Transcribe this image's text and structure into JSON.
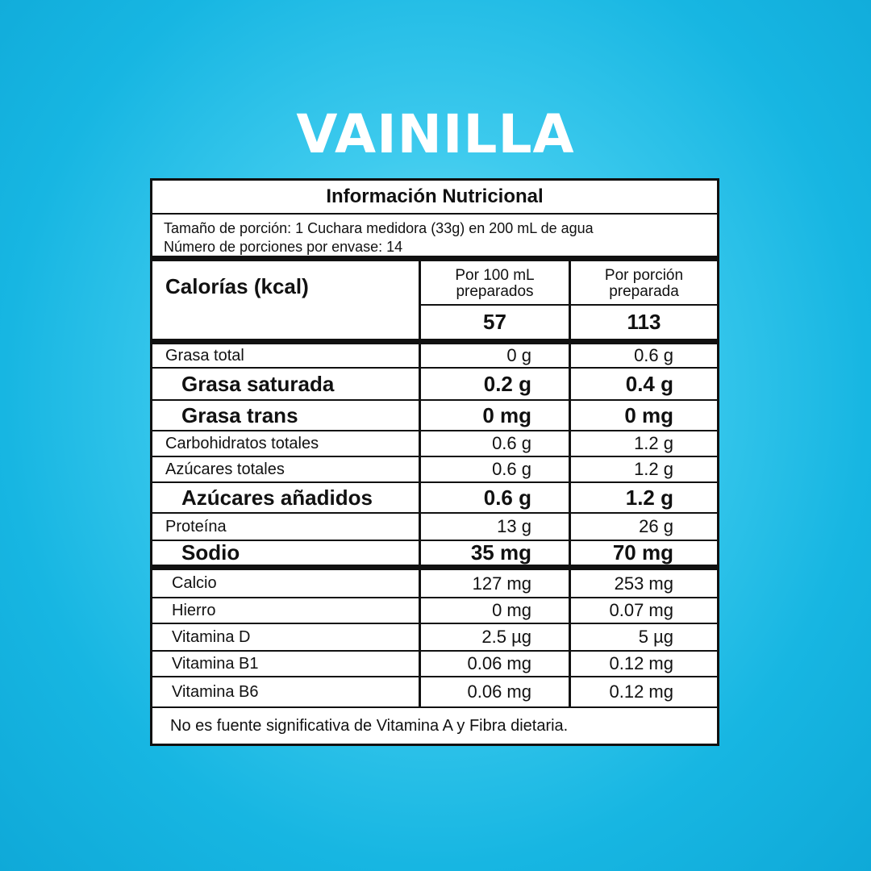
{
  "title": "VAINILLA",
  "label": {
    "heading": "Información Nutricional",
    "serving_size": "Tamaño de porción: 1 Cuchara medidora (33g) en 200 mL de agua",
    "servings_per_container": "Número de porciones por envase: 14",
    "calories_label": "Calorías (kcal)",
    "col1_header": "Por 100 mL preparados",
    "col2_header": "Por porción preparada",
    "calories_col1": "57",
    "calories_col2": "113",
    "nutrients": [
      {
        "name": "Grasa total",
        "v1": "0 g",
        "v2": "0.6 g",
        "bold": false
      },
      {
        "name": "Grasa saturada",
        "v1": "0.2 g",
        "v2": "0.4 g",
        "bold": true
      },
      {
        "name": "Grasa trans",
        "v1": "0 mg",
        "v2": "0 mg",
        "bold": true
      },
      {
        "name": "Carbohidratos totales",
        "v1": "0.6 g",
        "v2": "1.2 g",
        "bold": false
      },
      {
        "name": "Azúcares totales",
        "v1": "0.6 g",
        "v2": "1.2 g",
        "bold": false
      },
      {
        "name": "Azúcares añadidos",
        "v1": "0.6 g",
        "v2": "1.2 g",
        "bold": true
      },
      {
        "name": "Proteína",
        "v1": "13 g",
        "v2": "26 g",
        "bold": false
      },
      {
        "name": "Sodio",
        "v1": "35 mg",
        "v2": "70 mg",
        "bold": true
      }
    ],
    "micronutrients": [
      {
        "name": "Calcio",
        "v1": "127 mg",
        "v2": "253 mg"
      },
      {
        "name": "Hierro",
        "v1": "0 mg",
        "v2": "0.07 mg"
      },
      {
        "name": "Vitamina D",
        "v1": "2.5  µg",
        "v2": "5  µg"
      },
      {
        "name": "Vitamina B1",
        "v1": "0.06 mg",
        "v2": "0.12 mg"
      },
      {
        "name": "Vitamina B6",
        "v1": "0.06 mg",
        "v2": "0.12 mg"
      }
    ],
    "footnote": "No es fuente significativa de Vitamina A y Fibra dietaria."
  },
  "colors": {
    "background": "#17b6e2",
    "title": "#ffffff",
    "border": "#111111"
  }
}
